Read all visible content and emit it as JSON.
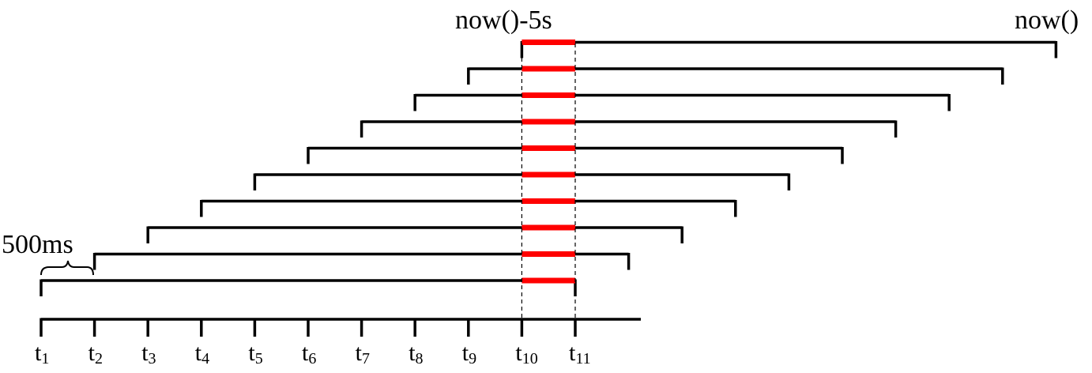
{
  "labels": {
    "window_start": "now()-5s",
    "window_end": "now()",
    "interval": "500ms"
  },
  "time_axis": {
    "ticks": [
      {
        "base": "t",
        "sub": "1"
      },
      {
        "base": "t",
        "sub": "2"
      },
      {
        "base": "t",
        "sub": "3"
      },
      {
        "base": "t",
        "sub": "4"
      },
      {
        "base": "t",
        "sub": "5"
      },
      {
        "base": "t",
        "sub": "6"
      },
      {
        "base": "t",
        "sub": "7"
      },
      {
        "base": "t",
        "sub": "8"
      },
      {
        "base": "t",
        "sub": "9"
      },
      {
        "base": "t",
        "sub": "10"
      },
      {
        "base": "t",
        "sub": "11"
      }
    ]
  },
  "intervals": {
    "count": 10,
    "start_ticks": [
      1,
      2,
      3,
      4,
      5,
      6,
      7,
      8,
      9,
      10
    ],
    "length_ms": 5000,
    "step_ms": 500,
    "overlap_from_tick": 10,
    "overlap_to_tick": 11
  },
  "colors": {
    "line": "#000000",
    "overlap": "#ff0000"
  }
}
